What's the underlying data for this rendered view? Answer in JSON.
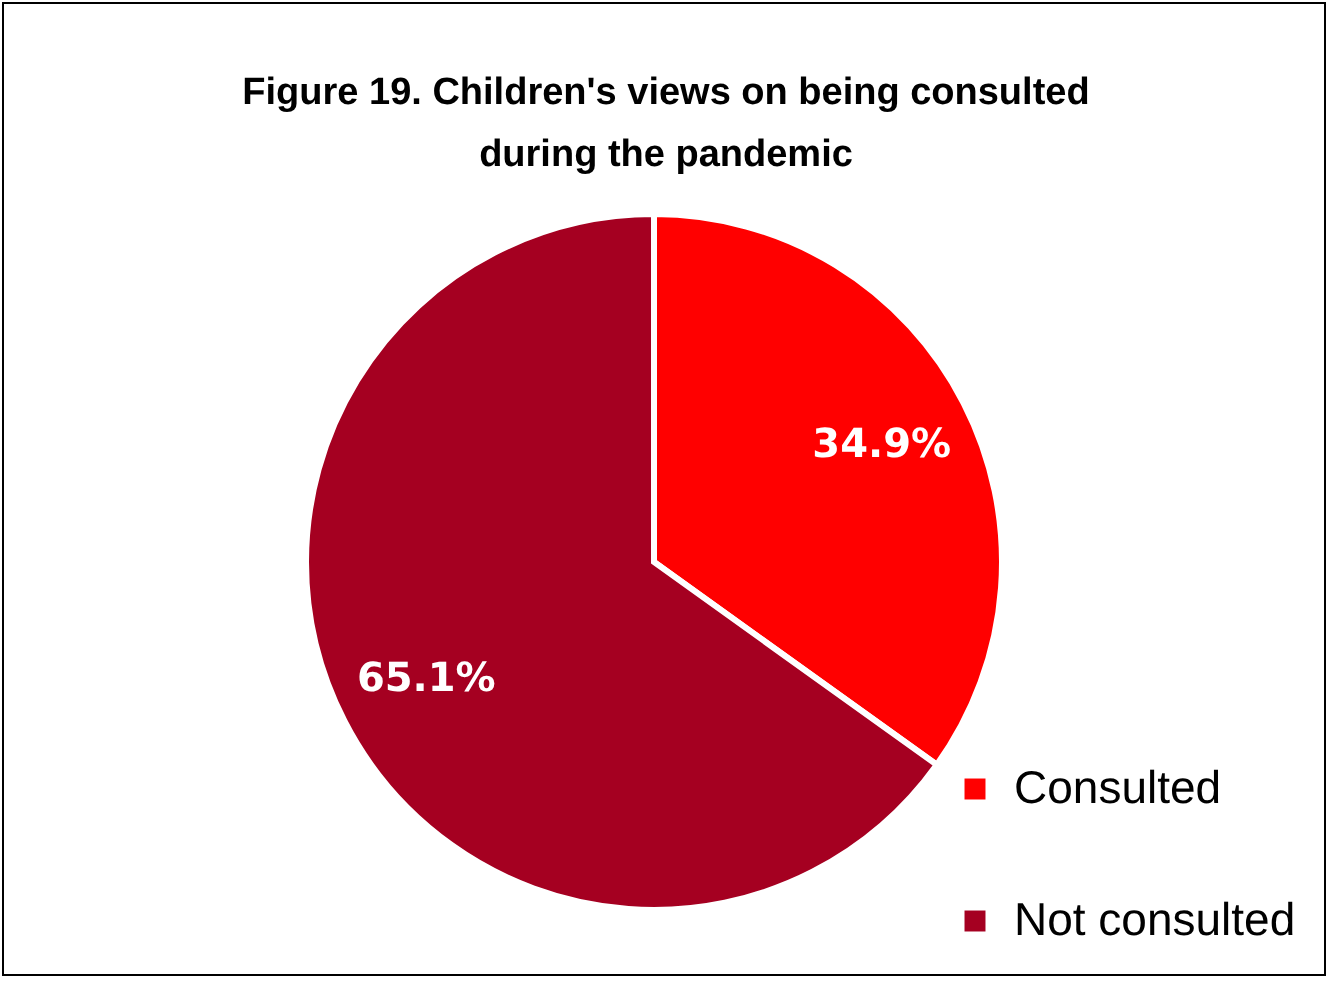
{
  "chart_data": {
    "type": "pie",
    "title": "Figure 19. Children's views on being consulted during the pandemic",
    "categories": [
      "Consulted",
      "Not consulted"
    ],
    "values": [
      34.9,
      65.1
    ],
    "colors": [
      "#ff0000",
      "#a50021"
    ],
    "value_labels": [
      "34.9%",
      "65.1%"
    ],
    "legend": "bottom right"
  }
}
